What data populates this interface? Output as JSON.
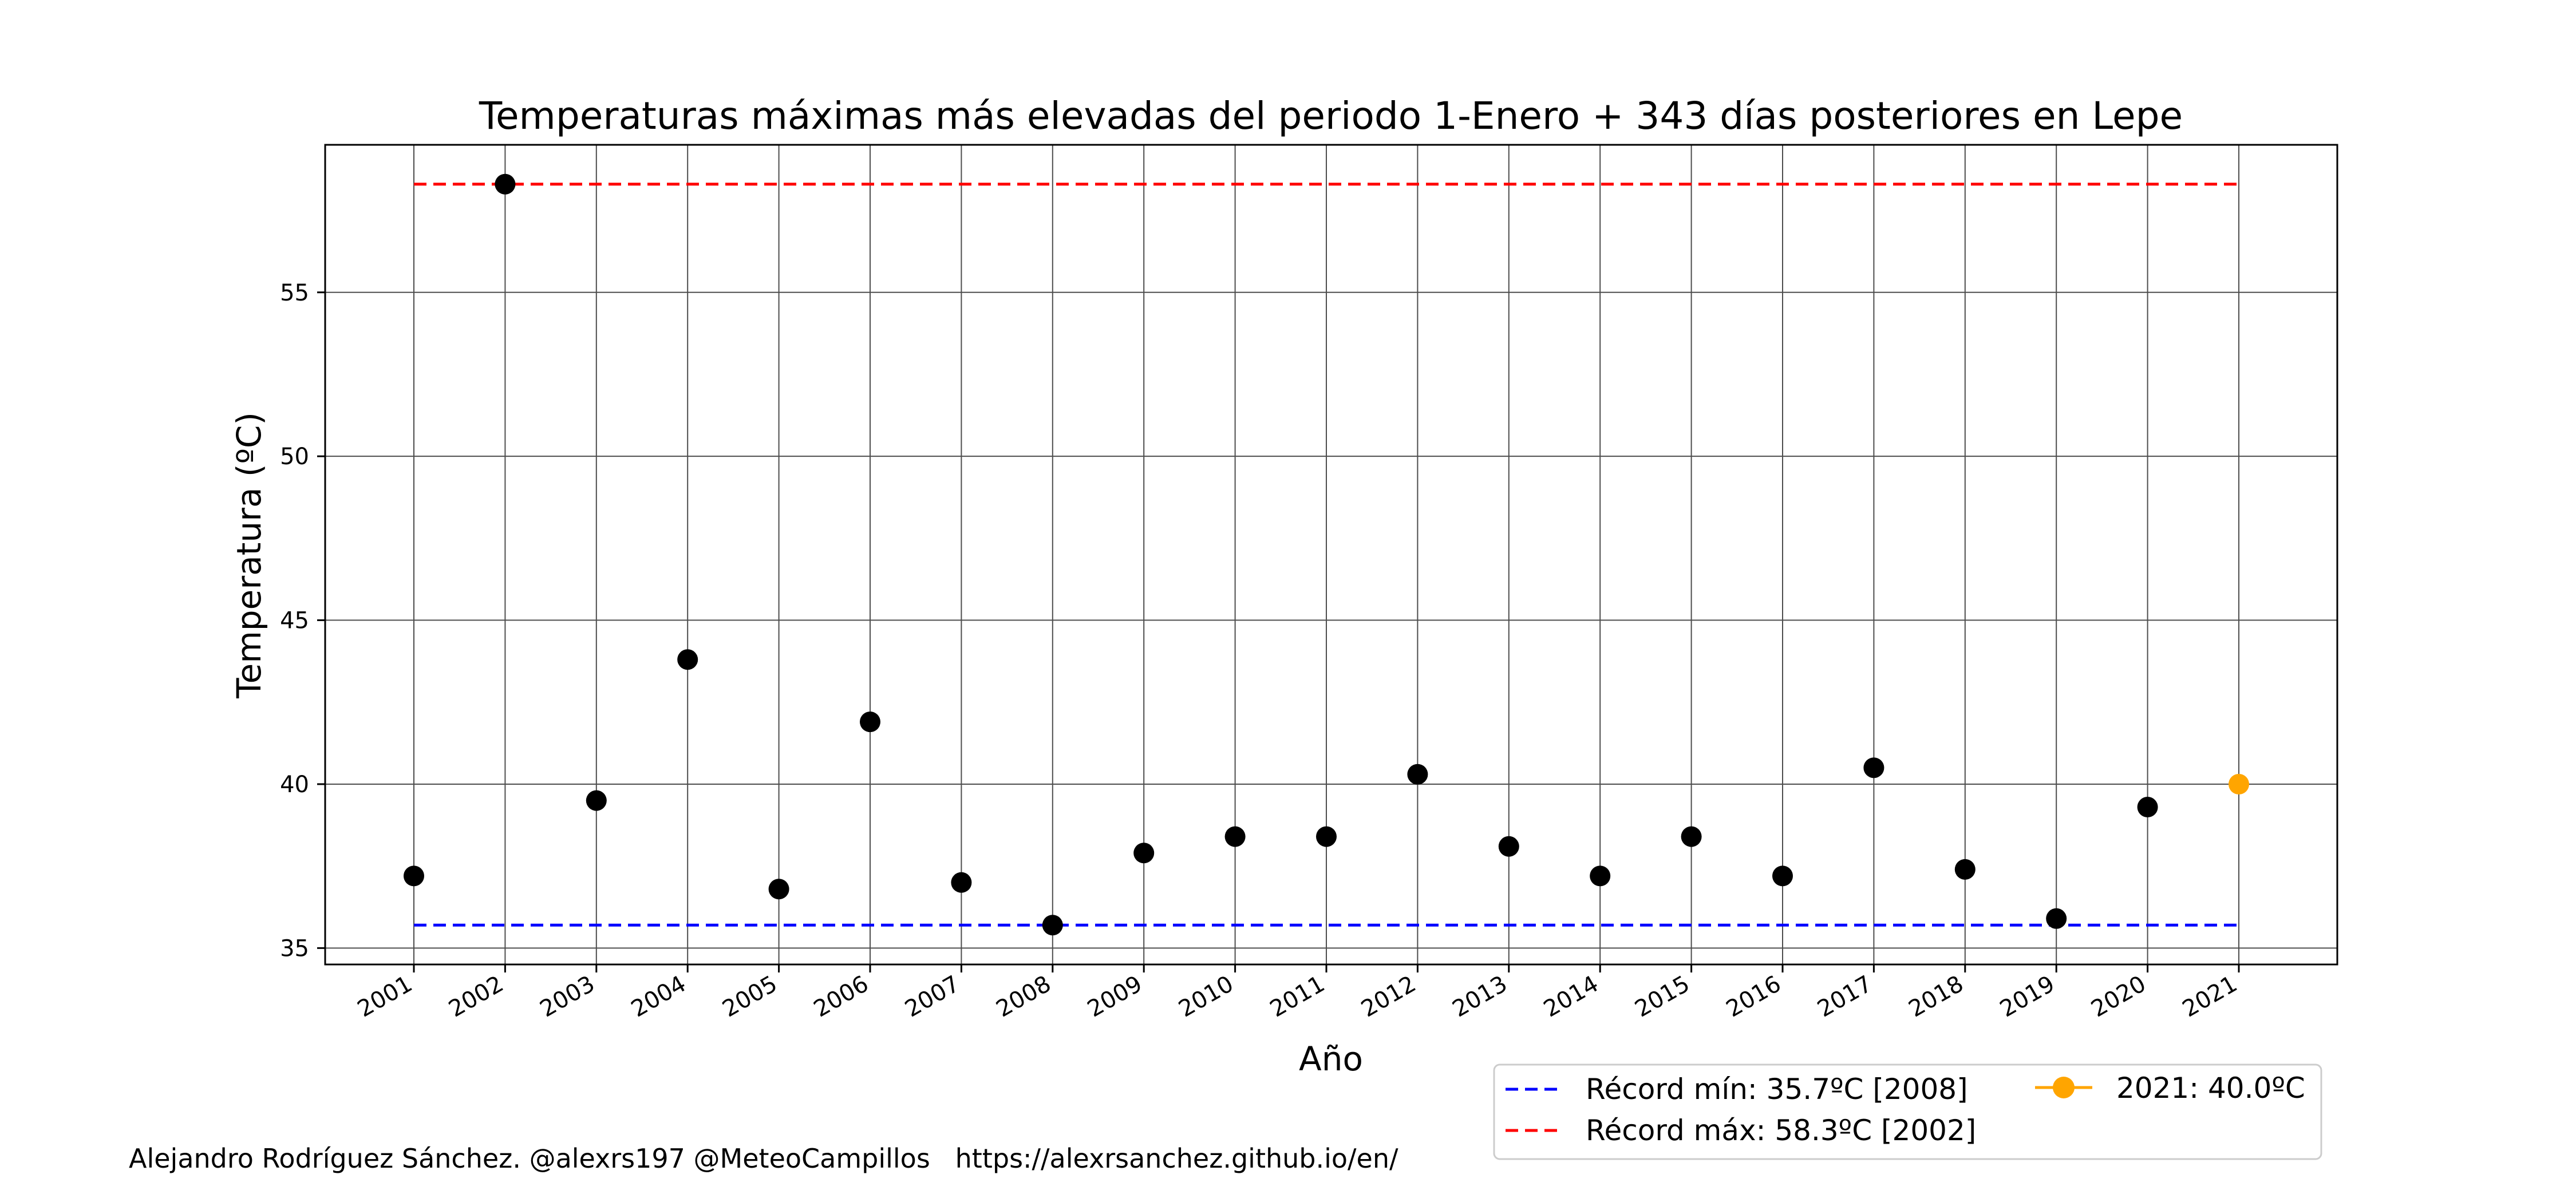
{
  "chart_data": {
    "type": "scatter",
    "title": "Temperaturas máximas más elevadas del periodo 1-Enero + 343 días posteriores en Lepe",
    "xlabel": "Año",
    "ylabel": "Temperatura (ºC)",
    "x": [
      "2001",
      "2002",
      "2003",
      "2004",
      "2005",
      "2006",
      "2007",
      "2008",
      "2009",
      "2010",
      "2011",
      "2012",
      "2013",
      "2014",
      "2015",
      "2016",
      "2017",
      "2018",
      "2019",
      "2020",
      "2021"
    ],
    "values": [
      37.2,
      58.3,
      39.5,
      43.8,
      36.8,
      41.9,
      37.0,
      35.7,
      37.9,
      38.4,
      38.4,
      40.3,
      38.1,
      37.2,
      38.4,
      37.2,
      40.5,
      37.4,
      35.9,
      39.3,
      40.0
    ],
    "ylim": [
      34.5,
      59.5
    ],
    "yticks": [
      35,
      40,
      45,
      50,
      55
    ],
    "grid": true,
    "highlight": {
      "year": "2021",
      "value": 40.0,
      "color": "#ffa500"
    },
    "point_color": "#000000",
    "record_min": {
      "value": 35.7,
      "label": "Récord mín: 35.7ºC [2008]",
      "color": "#0000ff"
    },
    "record_max": {
      "value": 58.3,
      "label": "Récord máx: 58.3ºC [2002]",
      "color": "#ff0000"
    },
    "legend": {
      "placement": "bottom-right",
      "current_label": "2021: 40.0ºC"
    }
  },
  "credit": "Alejandro Rodríguez Sánchez. @alexrs197 @MeteoCampillos   https://alexrsanchez.github.io/en/"
}
